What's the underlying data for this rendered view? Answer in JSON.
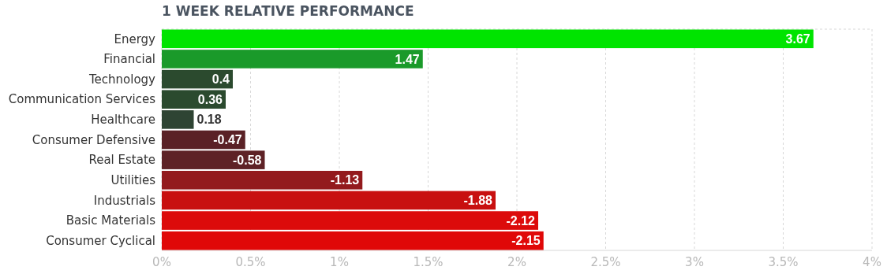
{
  "chart_data": {
    "type": "bar",
    "orientation": "horizontal",
    "title": "1 WEEK RELATIVE PERFORMANCE",
    "categories": [
      "Energy",
      "Financial",
      "Technology",
      "Communication Services",
      "Healthcare",
      "Consumer Defensive",
      "Real Estate",
      "Utilities",
      "Industrials",
      "Basic Materials",
      "Consumer Cyclical"
    ],
    "values": [
      3.67,
      1.47,
      0.4,
      0.36,
      0.18,
      -0.47,
      -0.58,
      -1.13,
      -1.88,
      -2.12,
      -2.15
    ],
    "base": [
      0,
      0,
      0,
      0,
      0,
      0.47,
      0.58,
      1.13,
      1.88,
      2.12,
      2.15
    ],
    "data_labels": true,
    "colors": [
      "#00e400",
      "#1a9a2a",
      "#2b4a2e",
      "#2b4a2e",
      "#2e4433",
      "#5a2126",
      "#5e2226",
      "#931a1d",
      "#c81010",
      "#dc0b0b",
      "#e00808"
    ],
    "xlim": [
      0,
      4
    ],
    "xticks": [
      {
        "value": 0,
        "label": "0%"
      },
      {
        "value": 0.5,
        "label": "0.5%"
      },
      {
        "value": 1,
        "label": "1%"
      },
      {
        "value": 1.5,
        "label": "1.5%"
      },
      {
        "value": 2,
        "label": "2%"
      },
      {
        "value": 2.5,
        "label": "2.5%"
      },
      {
        "value": 3,
        "label": "3%"
      },
      {
        "value": 3.5,
        "label": "3.5%"
      },
      {
        "value": 4,
        "label": "4%"
      }
    ],
    "grid": "x"
  }
}
